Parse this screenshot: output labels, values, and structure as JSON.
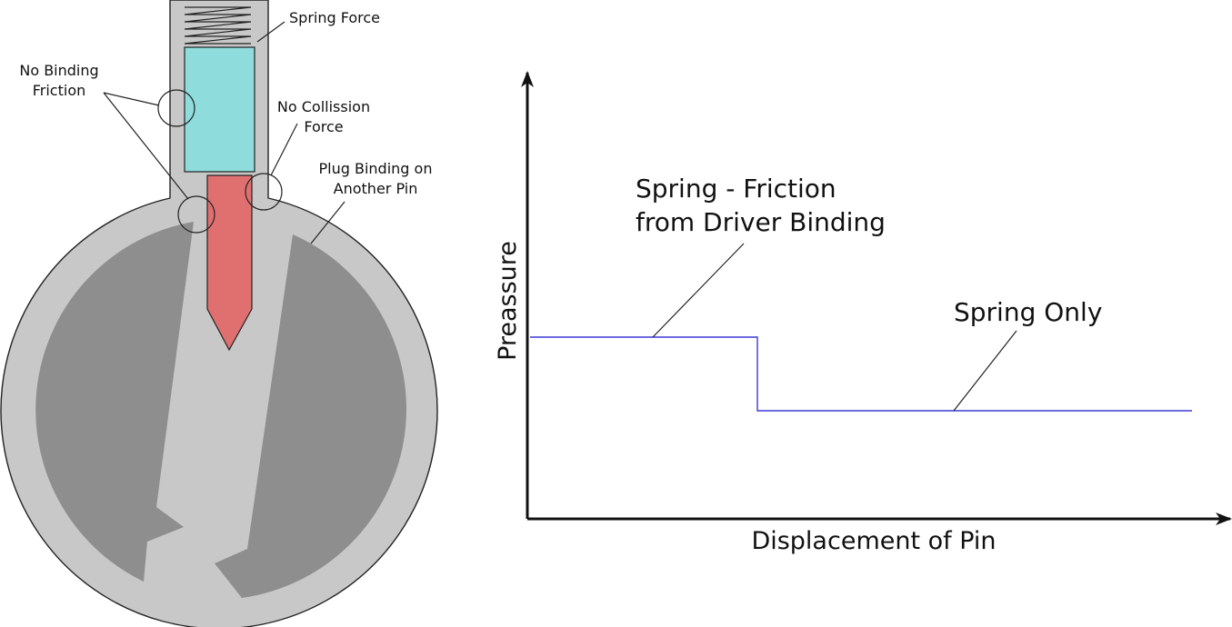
{
  "lock_diagram": {
    "labels": {
      "spring_force": "Spring Force",
      "no_binding_1": "No Binding",
      "no_binding_2": "Friction",
      "no_collision_1": "No Collission",
      "no_collision_2": "Force",
      "plug_binding_1": "Plug Binding on",
      "plug_binding_2": "Another Pin"
    },
    "colors": {
      "housing": "#c8c8c8",
      "plug": "#8e8e8e",
      "driver_pin": "#8fdcdc",
      "key_pin": "#e07070",
      "outline": "#222222"
    }
  },
  "graph": {
    "ylabel": "Preassure",
    "xlabel": "Displacement of Pin",
    "annotation_1_line1": "Spring - Friction",
    "annotation_1_line2": "from Driver Binding",
    "annotation_2": "Spring Only",
    "line_color": "#3a3ad6"
  }
}
